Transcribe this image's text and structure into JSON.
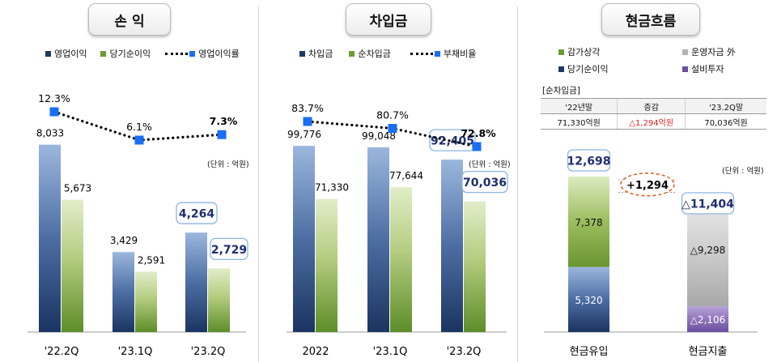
{
  "panels": {
    "pl": {
      "title": "손 익",
      "legend": {
        "op": "영업이익",
        "net": "당기순이익",
        "rate": "영업이익률"
      },
      "unit": "(단위 : 억원)"
    },
    "debt": {
      "title": "차입금",
      "legend": {
        "gross": "차입금",
        "net": "순차입금",
        "rate": "부채비율"
      },
      "unit": "(단위 : 억원)"
    },
    "cf": {
      "title": "현금흐름",
      "legend": {
        "dep": "감가상각",
        "wc": "운영자금 外",
        "net_income": "당기순이익",
        "capex": "설비투자"
      },
      "unit": "(단위 : 억원)"
    }
  },
  "chart_data": [
    {
      "type": "bar",
      "categories": [
        "'22.2Q",
        "'23.1Q",
        "'23.2Q"
      ],
      "series": [
        {
          "name": "영업이익",
          "values": [
            8033,
            3429,
            4264
          ],
          "labels": [
            "8,033",
            "3,429",
            "4,264"
          ],
          "color": "#1f3864"
        },
        {
          "name": "당기순이익",
          "values": [
            5673,
            2591,
            2729
          ],
          "labels": [
            "5,673",
            "2,591",
            "2,729"
          ],
          "color": "#8bb34a"
        }
      ],
      "line": {
        "name": "영업이익률",
        "values": [
          12.3,
          6.1,
          7.3
        ],
        "labels": [
          "12.3%",
          "6.1%",
          "7.3%"
        ],
        "color": "#1a6ef5"
      },
      "highlight_index": 2,
      "ylim": [
        0,
        10000
      ]
    },
    {
      "type": "bar",
      "categories": [
        "2022",
        "'23.1Q",
        "'23.2Q"
      ],
      "series": [
        {
          "name": "차입금",
          "values": [
            99776,
            99048,
            92405
          ],
          "labels": [
            "99,776",
            "99,048",
            "92,405"
          ],
          "color": "#1f3864"
        },
        {
          "name": "순차입금",
          "values": [
            71330,
            77644,
            70036
          ],
          "labels": [
            "71,330",
            "77,644",
            "70,036"
          ],
          "color": "#8bb34a"
        }
      ],
      "line": {
        "name": "부채비율",
        "values": [
          83.7,
          80.7,
          72.8
        ],
        "labels": [
          "83.7%",
          "80.7%",
          "72.8%"
        ],
        "color": "#1a6ef5"
      },
      "highlight_index": 2,
      "ylim": [
        0,
        125000
      ]
    },
    {
      "type": "bar",
      "stacked": true,
      "categories": [
        "현금유입",
        "현금지출"
      ],
      "inflow": {
        "total": 12698,
        "total_label": "12,698",
        "segments": [
          {
            "name": "당기순이익",
            "value": 5320,
            "label": "5,320",
            "color": "#1f3864"
          },
          {
            "name": "감가상각",
            "value": 7378,
            "label": "7,378",
            "color": "#8bb34a"
          }
        ]
      },
      "outflow": {
        "total": 11404,
        "total_label": "△11,404",
        "segments": [
          {
            "name": "설비투자",
            "value": 2106,
            "label": "△2,106",
            "color": "#6b4ea0"
          },
          {
            "name": "운영자금 外",
            "value": 9298,
            "label": "△9,298",
            "color": "#bdbdbd"
          }
        ]
      },
      "difference_label": "+1,294",
      "ylim": [
        0,
        13000
      ],
      "table": {
        "title": "[순차입금]",
        "headers": [
          "'22년말",
          "증감",
          "'23.2Q말"
        ],
        "values": [
          "71,330억원",
          "△1,294억원",
          "70,036억원"
        ],
        "change_color": "#e02020"
      }
    }
  ]
}
